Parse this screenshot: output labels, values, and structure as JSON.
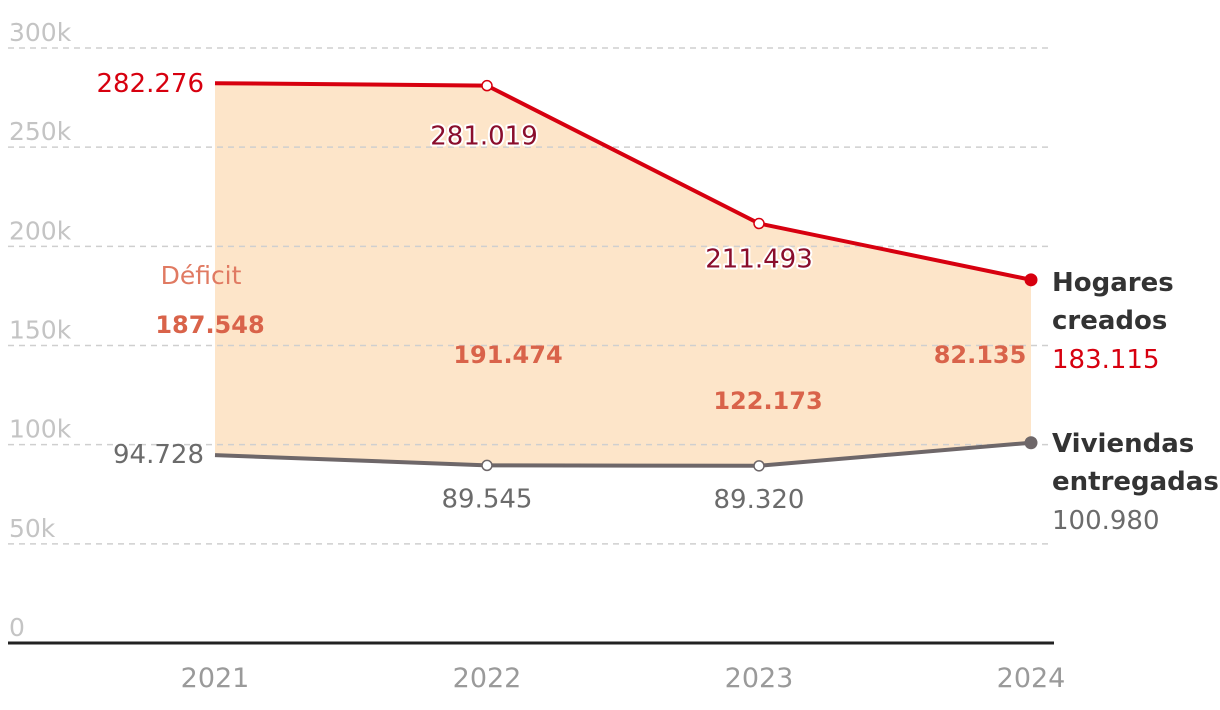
{
  "chart_data": {
    "type": "line",
    "categories": [
      "2021",
      "2022",
      "2023",
      "2024"
    ],
    "ylim": [
      0,
      300000
    ],
    "y_ticks": [
      {
        "value": 0,
        "label": "0"
      },
      {
        "value": 50000,
        "label": "50k"
      },
      {
        "value": 100000,
        "label": "100k"
      },
      {
        "value": 150000,
        "label": "150k"
      },
      {
        "value": 200000,
        "label": "200k"
      },
      {
        "value": 250000,
        "label": "250k"
      },
      {
        "value": 300000,
        "label": "300k"
      }
    ],
    "grid": true,
    "series": [
      {
        "name_lines": [
          "Hogares",
          "creados"
        ],
        "color": "#d7000f",
        "values": [
          282276,
          281019,
          211493,
          183115
        ],
        "labels": [
          "282.276",
          "281.019",
          "211.493",
          "183.115"
        ]
      },
      {
        "name_lines": [
          "Viviendas",
          "entregadas"
        ],
        "color": "#6e6769",
        "values": [
          94728,
          89545,
          89320,
          100980
        ],
        "labels": [
          "94.728",
          "89.545",
          "89.320",
          "100.980"
        ]
      }
    ],
    "deficit": {
      "label": "Déficit",
      "fill_color": "#fde5c9",
      "values": [
        187548,
        191474,
        122173,
        82135
      ],
      "labels": [
        "187.548",
        "191.474",
        "122.173",
        "82.135"
      ]
    }
  }
}
